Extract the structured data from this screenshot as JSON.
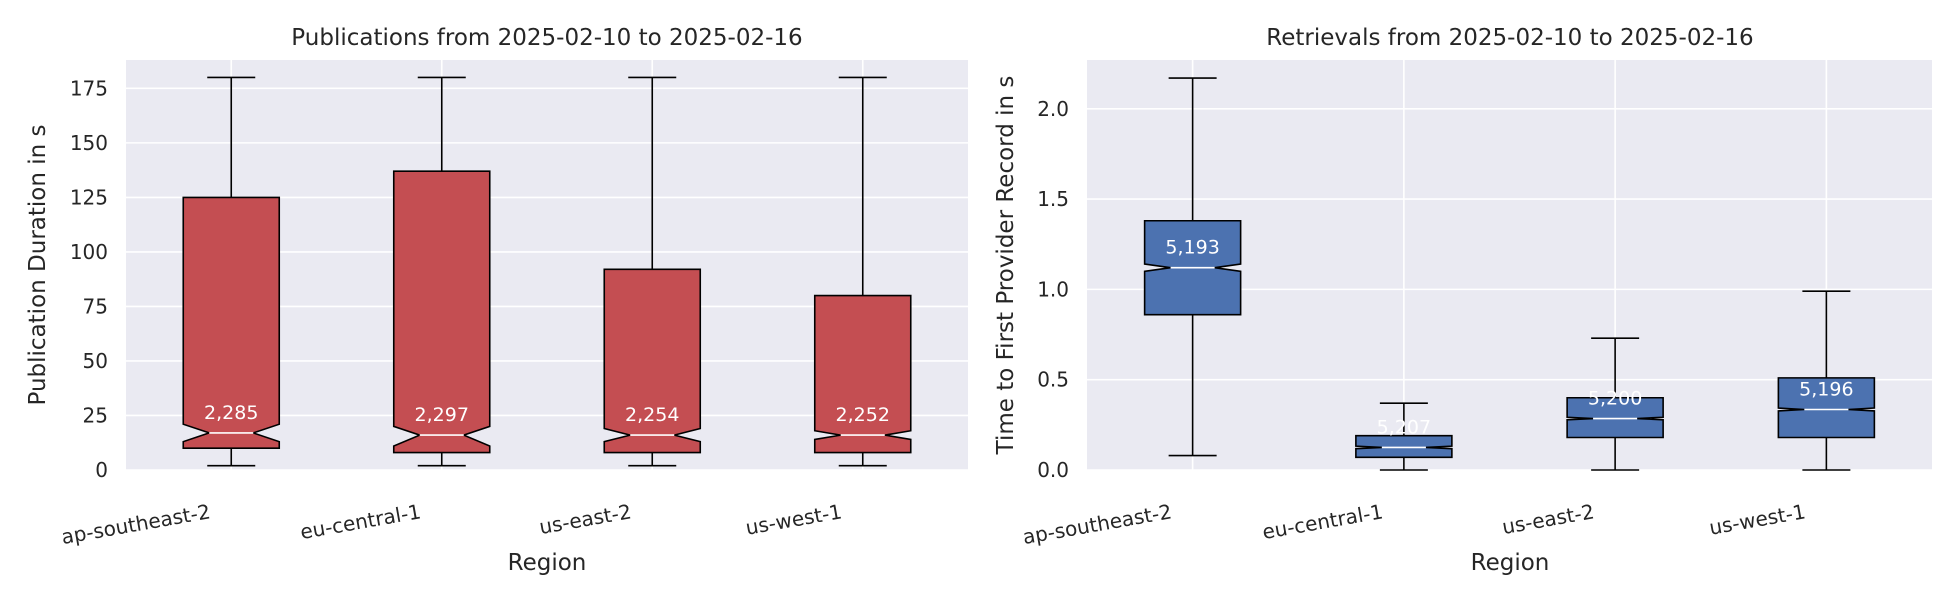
{
  "chart_data": [
    {
      "type": "boxplot",
      "title": "Publications from 2025-02-10 to 2025-02-16",
      "xlabel": "Region",
      "ylabel": "Publication Duration in s",
      "ylim": [
        0,
        188
      ],
      "yticks": [
        0,
        25,
        50,
        75,
        100,
        125,
        150,
        175
      ],
      "color": "#c44e52",
      "median_color": "#ffffff",
      "background": "#eaeaf2",
      "grid": true,
      "categories": [
        "ap-southeast-2",
        "eu-central-1",
        "us-east-2",
        "us-west-1"
      ],
      "boxes": [
        {
          "whislo": 2,
          "q1": 10,
          "med": 17,
          "q3": 125,
          "whishi": 180,
          "notch_lo": 13,
          "notch_hi": 21,
          "count": "2,285"
        },
        {
          "whislo": 2,
          "q1": 8,
          "med": 16,
          "q3": 137,
          "whishi": 180,
          "notch_lo": 11,
          "notch_hi": 20,
          "count": "2,297"
        },
        {
          "whislo": 2,
          "q1": 8,
          "med": 16,
          "q3": 92,
          "whishi": 180,
          "notch_lo": 13,
          "notch_hi": 19,
          "count": "2,254"
        },
        {
          "whislo": 2,
          "q1": 8,
          "med": 16,
          "q3": 80,
          "whishi": 180,
          "notch_lo": 14,
          "notch_hi": 18,
          "count": "2,252"
        }
      ]
    },
    {
      "type": "boxplot",
      "title": "Retrievals from 2025-02-10 to 2025-02-16",
      "xlabel": "Region",
      "ylabel": "Time to First Provider Record in s",
      "ylim": [
        0,
        2.27
      ],
      "yticks": [
        "0.0",
        "0.5",
        "1.0",
        "1.5",
        "2.0"
      ],
      "color": "#4c72b0",
      "median_color": "#ffffff",
      "background": "#eaeaf2",
      "grid": true,
      "categories": [
        "ap-southeast-2",
        "eu-central-1",
        "us-east-2",
        "us-west-1"
      ],
      "boxes": [
        {
          "whislo": 0.08,
          "q1": 0.86,
          "med": 1.12,
          "q3": 1.38,
          "whishi": 2.17,
          "notch_lo": 1.1,
          "notch_hi": 1.14,
          "count": "5,193"
        },
        {
          "whislo": 0.0,
          "q1": 0.07,
          "med": 0.125,
          "q3": 0.19,
          "whishi": 0.37,
          "notch_lo": 0.118,
          "notch_hi": 0.132,
          "count": "5,207"
        },
        {
          "whislo": 0.0,
          "q1": 0.18,
          "med": 0.285,
          "q3": 0.4,
          "whishi": 0.73,
          "notch_lo": 0.278,
          "notch_hi": 0.292,
          "count": "5,200"
        },
        {
          "whislo": 0.0,
          "q1": 0.18,
          "med": 0.335,
          "q3": 0.51,
          "whishi": 0.99,
          "notch_lo": 0.327,
          "notch_hi": 0.343,
          "count": "5,196"
        }
      ]
    }
  ]
}
